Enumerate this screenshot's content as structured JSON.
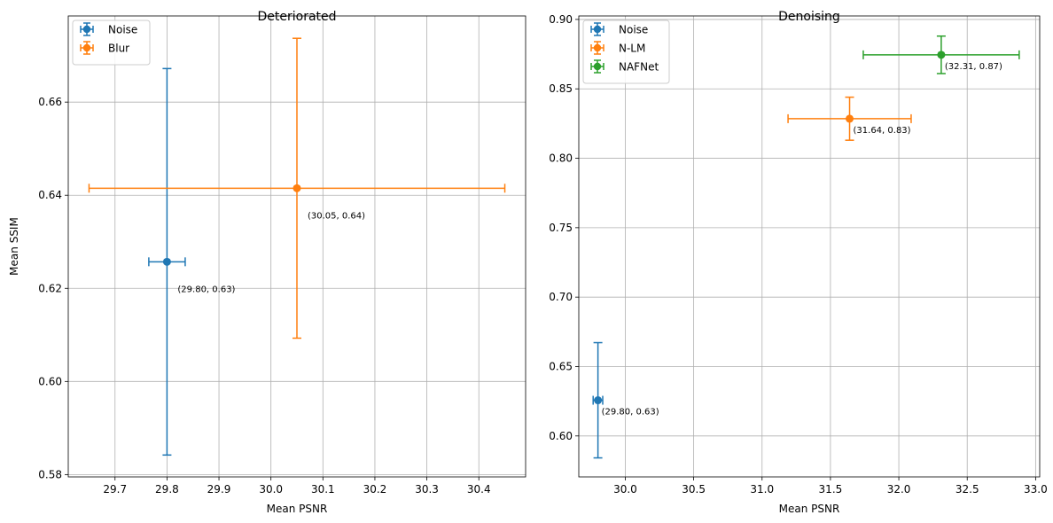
{
  "chart_data": [
    {
      "type": "scatter",
      "title": "Deteriorated",
      "xlabel": "Mean PSNR",
      "ylabel": "Mean SSIM",
      "xlim": [
        29.61,
        30.49
      ],
      "ylim": [
        0.5795,
        0.6785
      ],
      "xticks": [
        29.7,
        29.8,
        29.9,
        30.0,
        30.1,
        30.2,
        30.3,
        30.4
      ],
      "xtick_labels": [
        "29.7",
        "29.8",
        "29.9",
        "30.0",
        "30.1",
        "30.2",
        "30.3",
        "30.4"
      ],
      "yticks": [
        0.58,
        0.6,
        0.62,
        0.64,
        0.66
      ],
      "ytick_labels": [
        "0.58",
        "0.60",
        "0.62",
        "0.64",
        "0.66"
      ],
      "grid": true,
      "legend_position": "top-left",
      "series": [
        {
          "name": "Noise",
          "color": "#1f77b4",
          "x": 29.8,
          "y": 0.6257,
          "xerr": 0.035,
          "yerr": 0.0415,
          "annotation": "(29.80, 0.63)"
        },
        {
          "name": "Blur",
          "color": "#ff7f0e",
          "x": 30.05,
          "y": 0.6415,
          "xerr": 0.4,
          "yerr": 0.0322,
          "annotation": "(30.05, 0.64)"
        }
      ]
    },
    {
      "type": "scatter",
      "title": "Denoising",
      "xlabel": "Mean PSNR",
      "ylabel": "",
      "xlim": [
        29.66,
        33.03
      ],
      "ylim": [
        0.5705,
        0.9025
      ],
      "xticks": [
        30.0,
        30.5,
        31.0,
        31.5,
        32.0,
        32.5,
        33.0
      ],
      "xtick_labels": [
        "30.0",
        "30.5",
        "31.0",
        "31.5",
        "32.0",
        "32.5",
        "33.0"
      ],
      "yticks": [
        0.6,
        0.65,
        0.7,
        0.75,
        0.8,
        0.85,
        0.9
      ],
      "ytick_labels": [
        "0.60",
        "0.65",
        "0.70",
        "0.75",
        "0.80",
        "0.85",
        "0.90"
      ],
      "grid": true,
      "legend_position": "top-left",
      "series": [
        {
          "name": "Noise",
          "color": "#1f77b4",
          "x": 29.8,
          "y": 0.6257,
          "xerr": 0.035,
          "yerr": 0.0415,
          "annotation": "(29.80, 0.63)"
        },
        {
          "name": "N-LM",
          "color": "#ff7f0e",
          "x": 31.64,
          "y": 0.8285,
          "xerr": 0.45,
          "yerr": 0.0155,
          "annotation": "(31.64, 0.83)"
        },
        {
          "name": "NAFNet",
          "color": "#2ca02c",
          "x": 32.31,
          "y": 0.8745,
          "xerr": 0.57,
          "yerr": 0.0135,
          "annotation": "(32.31, 0.87)"
        }
      ]
    }
  ]
}
